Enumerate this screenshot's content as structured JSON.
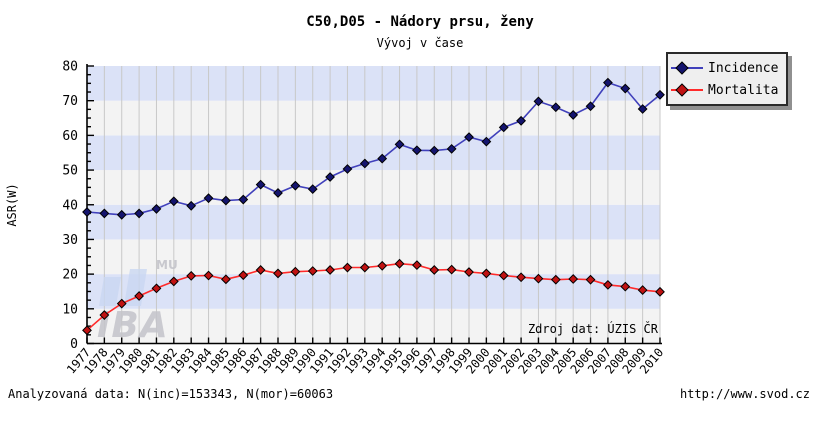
{
  "title": "C50,D05 - Nádory prsu, ženy",
  "subtitle": "Vývoj v čase",
  "source_note": "Zdroj dat: ÚZIS ČR",
  "footer": {
    "left": "Analyzovaná data: N(inc)=153343, N(mor)=60063",
    "right": "http://www.svod.cz"
  },
  "watermark": {
    "logo_text": "IBA",
    "university_text": "MU"
  },
  "colors": {
    "band_light": "#f3f3f3",
    "band_blue": "#dbe2f7",
    "gridline": "#c8c8c8",
    "axis": "#000000",
    "incidence_line": "#4040bb",
    "incidence_marker": "#14146e",
    "mortalita_line": "#ff2a2a",
    "mortalita_marker": "#c01212",
    "legend_bg": "#efefef",
    "watermark_bar": "#c9d7f1",
    "watermark_text": "#c4c4ca"
  },
  "chart_data": {
    "type": "line",
    "title": "C50,D05 - Nádory prsu, ženy",
    "subtitle": "Vývoj v čase",
    "xlabel": "",
    "ylabel": "ASR(W)",
    "ylim": [
      0,
      80
    ],
    "ytick_step": 10,
    "ytick_minor_step": 2.5,
    "grid": "vertical-per-year, horizontal alternating bands per 10 units",
    "legend_position": "top-right",
    "x": [
      1977,
      1978,
      1979,
      1980,
      1981,
      1982,
      1983,
      1984,
      1985,
      1986,
      1987,
      1988,
      1989,
      1990,
      1991,
      1992,
      1993,
      1994,
      1995,
      1996,
      1997,
      1998,
      1999,
      2000,
      2001,
      2002,
      2003,
      2004,
      2005,
      2006,
      2007,
      2008,
      2009,
      2010
    ],
    "series": [
      {
        "name": "Incidence",
        "values": [
          37.9,
          37.5,
          37.1,
          37.5,
          38.8,
          41.0,
          39.7,
          41.9,
          41.2,
          41.5,
          45.8,
          43.4,
          45.5,
          44.5,
          48.0,
          50.3,
          51.9,
          53.3,
          57.4,
          55.7,
          55.6,
          56.1,
          59.5,
          58.2,
          62.3,
          64.2,
          69.8,
          68.1,
          65.9,
          68.4,
          75.2,
          73.5,
          67.6,
          71.7
        ]
      },
      {
        "name": "Mortalita",
        "values": [
          3.8,
          8.2,
          11.5,
          13.7,
          15.9,
          17.9,
          19.5,
          19.6,
          18.5,
          19.7,
          21.2,
          20.2,
          20.7,
          20.9,
          21.2,
          21.9,
          21.9,
          22.4,
          23.0,
          22.6,
          21.2,
          21.3,
          20.6,
          20.2,
          19.6,
          19.1,
          18.7,
          18.4,
          18.6,
          18.4,
          16.9,
          16.4,
          15.4,
          14.9
        ]
      }
    ]
  }
}
